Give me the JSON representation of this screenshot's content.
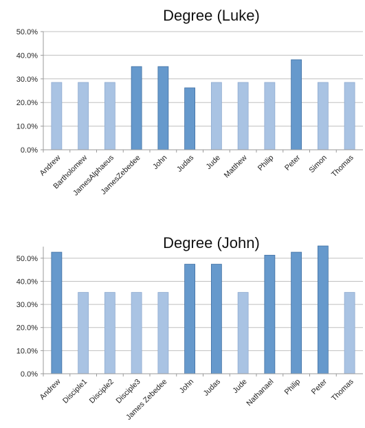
{
  "colors": {
    "dark": "#6699cc",
    "light": "#a9c3e3"
  },
  "chart_data": [
    {
      "type": "bar",
      "title": "Degree (Luke)",
      "xlabel": "",
      "ylabel": "",
      "ylim": [
        0,
        50
      ],
      "yticks": [
        "0.0%",
        "10.0%",
        "20.0%",
        "30.0%",
        "40.0%",
        "50.0%"
      ],
      "grid": true,
      "categories": [
        "Andrew",
        "Bartholomew",
        "JamesAlphaeus",
        "JamesZebedee",
        "John",
        "Judas",
        "Jude",
        "Matthew",
        "Philip",
        "Peter",
        "Simon",
        "Thomas"
      ],
      "values": [
        28.5,
        28.5,
        28.5,
        35.2,
        35.2,
        26.2,
        28.5,
        28.5,
        28.5,
        38.1,
        28.5,
        28.5
      ],
      "highlight": [
        false,
        false,
        false,
        true,
        true,
        true,
        false,
        false,
        false,
        true,
        false,
        false
      ]
    },
    {
      "type": "bar",
      "title": "Degree (John)",
      "xlabel": "",
      "ylabel": "",
      "ylim": [
        0,
        55
      ],
      "yticks": [
        "0.0%",
        "10.0%",
        "20.0%",
        "30.0%",
        "40.0%",
        "50.0%"
      ],
      "grid": true,
      "categories": [
        "Andrew",
        "Disciple1",
        "Disciple2",
        "Disciple3",
        "James Zebedee",
        "John",
        "Judas",
        "Jude",
        "Nathanael",
        "Philip",
        "Peter",
        "Thomas"
      ],
      "values": [
        52.6,
        35.2,
        35.2,
        35.2,
        35.2,
        47.4,
        47.4,
        35.2,
        51.3,
        52.6,
        55.3,
        35.2
      ],
      "highlight": [
        true,
        false,
        false,
        false,
        false,
        true,
        true,
        false,
        true,
        true,
        true,
        false
      ]
    }
  ]
}
